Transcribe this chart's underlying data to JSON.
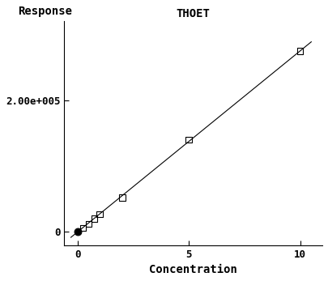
{
  "title": "THOET",
  "xlabel": "Concentration",
  "ylabel": "Response",
  "scatter_x": [
    0.0,
    0.25,
    0.5,
    0.75,
    1.0,
    2.0,
    5.0,
    10.0
  ],
  "scatter_y": [
    0,
    6000,
    12000,
    20000,
    27000,
    52000,
    140000,
    275000
  ],
  "origin_x": [
    0.0
  ],
  "origin_y": [
    0.0
  ],
  "line_slope": 27500,
  "line_x": [
    -0.3,
    10.5
  ],
  "xlim": [
    -0.6,
    11.0
  ],
  "ylim": [
    -20000,
    320000
  ],
  "xticks": [
    0,
    5,
    10
  ],
  "ytick_val": 200000,
  "background_color": "#ffffff",
  "line_color": "#000000",
  "marker_color": "#000000",
  "title_fontsize": 10,
  "label_fontsize": 10,
  "tick_fontsize": 9
}
